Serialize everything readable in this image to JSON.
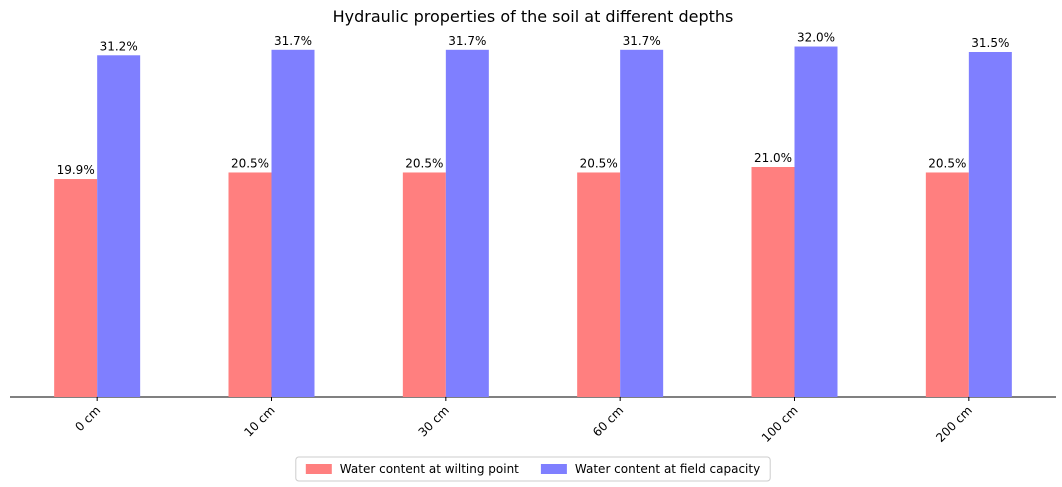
{
  "chart_data": {
    "type": "bar",
    "title": "Hydraulic properties of the soil at different depths",
    "categories": [
      "0 cm",
      "10 cm",
      "30 cm",
      "60 cm",
      "100 cm",
      "200 cm"
    ],
    "series": [
      {
        "name": "Water content at wilting point",
        "color": "#ff7f7f",
        "values": [
          19.9,
          20.5,
          20.5,
          20.5,
          21.0,
          20.5
        ],
        "value_labels": [
          "19.9%",
          "20.5%",
          "20.5%",
          "20.5%",
          "21.0%",
          "20.5%"
        ]
      },
      {
        "name": "Water content at field capacity",
        "color": "#7f7fff",
        "values": [
          31.2,
          31.7,
          31.7,
          31.7,
          32.0,
          31.5
        ],
        "value_labels": [
          "31.2%",
          "31.7%",
          "31.7%",
          "31.7%",
          "32.0%",
          "31.5%"
        ]
      }
    ],
    "ylim": [
      0,
      33.6
    ],
    "legend": "bottom"
  }
}
